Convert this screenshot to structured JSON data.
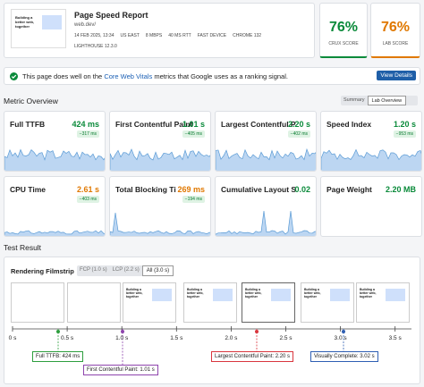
{
  "header": {
    "title": "Page Speed Report",
    "url": "web.dev/",
    "thumbnail_text": "Building a better web, together",
    "meta": [
      "14 FEB 2025, 13:34",
      "US EAST",
      "8 MBPS",
      "40 MS RTT",
      "FAST DEVICE",
      "CHROME 132",
      "LIGHTHOUSE 12.3.0"
    ]
  },
  "scores": [
    {
      "value": "76%",
      "label": "CRUX SCORE"
    },
    {
      "value": "76%",
      "label": "LAB SCORE"
    }
  ],
  "banner": {
    "before": "This page does well on the ",
    "link": "Core Web Vitals",
    "after": " metrics that Google uses as a ranking signal.",
    "button": "View Details"
  },
  "overview": {
    "title": "Metric Overview",
    "toggle": [
      "Summary",
      "Lab Overview"
    ]
  },
  "metrics": [
    {
      "name": "Full TTFB",
      "value": "424 ms",
      "delta": "−317 ms"
    },
    {
      "name": "First Contentful Paint",
      "value": "1.01 s",
      "delta": "−405 ms"
    },
    {
      "name": "Largest Contentful P",
      "value": "2.20 s",
      "delta": "−402 ms"
    },
    {
      "name": "Speed Index",
      "value": "1.20 s",
      "delta": "−953 ms"
    },
    {
      "name": "CPU Time",
      "value": "2.61 s",
      "delta": "−403 ms"
    },
    {
      "name": "Total Blocking Ti",
      "value": "269 ms",
      "delta": "−194 ms"
    },
    {
      "name": "Cumulative Layout S",
      "value": "0.02"
    },
    {
      "name": "Page Weight",
      "value": "2.20 MB"
    }
  ],
  "test": {
    "title": "Test Result",
    "filmstrip": "Rendering Filmstrip",
    "tabs": [
      "FCP (1.0 s)",
      "LCP (2.2 s)",
      "All (3.0 s)"
    ],
    "timeline": [
      "0 s",
      "0.5 s",
      "1.0 s",
      "1.5 s",
      "2.0 s",
      "2.5 s",
      "3.0 s",
      "3.5 s"
    ],
    "markers": [
      "Full TTFB: 424 ms",
      "First Contentful Paint: 1.01 s",
      "Largest Contentful Paint: 2.20 s",
      "Visually Complete: 3.02 s"
    ]
  }
}
